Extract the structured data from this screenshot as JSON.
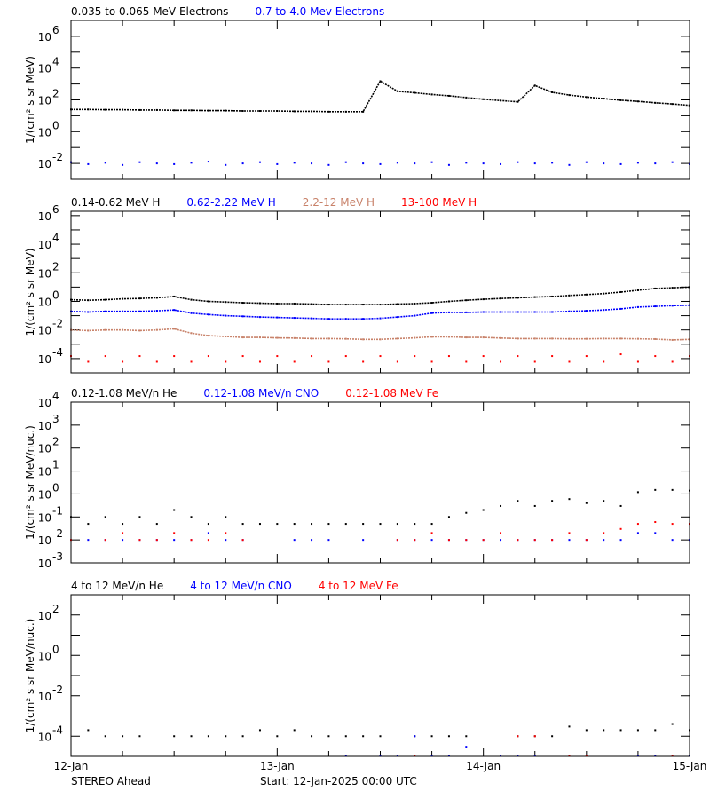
{
  "footer": {
    "spacecraft": "STEREO Ahead",
    "start": "Start: 12-Jan-2025 00:00 UTC"
  },
  "x_tick_labels": [
    "12-Jan",
    "13-Jan",
    "14-Jan",
    "15-Jan"
  ],
  "chart_data": [
    {
      "type": "scatter",
      "ylabel": "1/(cm² s sr MeV)",
      "yscale": "log",
      "ylim": [
        0.001,
        10000000.0
      ],
      "ytick_exponents": [
        -2,
        0,
        2,
        4,
        6
      ],
      "xlim": [
        "2025-01-12 00:00",
        "2025-01-15 00:00"
      ],
      "x": [
        "2025-01-12 00:00",
        "2025-01-12 02:00",
        "2025-01-12 04:00",
        "2025-01-12 06:00",
        "2025-01-12 08:00",
        "2025-01-12 10:00",
        "2025-01-12 12:00",
        "2025-01-12 14:00",
        "2025-01-12 16:00",
        "2025-01-12 18:00",
        "2025-01-12 20:00",
        "2025-01-12 22:00",
        "2025-01-13 00:00",
        "2025-01-13 02:00",
        "2025-01-13 04:00",
        "2025-01-13 06:00",
        "2025-01-13 08:00",
        "2025-01-13 10:00",
        "2025-01-13 12:00",
        "2025-01-13 14:00",
        "2025-01-13 16:00",
        "2025-01-13 18:00",
        "2025-01-13 20:00",
        "2025-01-13 22:00",
        "2025-01-14 00:00",
        "2025-01-14 02:00",
        "2025-01-14 04:00",
        "2025-01-14 06:00",
        "2025-01-14 08:00",
        "2025-01-14 10:00",
        "2025-01-14 12:00",
        "2025-01-14 14:00",
        "2025-01-14 16:00",
        "2025-01-14 18:00",
        "2025-01-14 20:00",
        "2025-01-14 22:00",
        "2025-01-15 00:00"
      ],
      "series": [
        {
          "name": "0.035 to 0.065 MeV Electrons",
          "color": "#000000",
          "connected": true,
          "values": [
            25,
            25,
            24,
            24,
            23,
            23,
            22,
            22,
            21,
            21,
            20,
            20,
            20,
            19,
            19,
            18,
            18,
            18,
            1500,
            350,
            280,
            220,
            180,
            140,
            110,
            90,
            75,
            800,
            300,
            200,
            150,
            120,
            95,
            80,
            65,
            55,
            45
          ]
        },
        {
          "name": "0.7 to 4.0 Mev Electrons",
          "color": "#0000ff",
          "connected": false,
          "values": [
            0.012,
            0.009,
            0.011,
            0.008,
            0.012,
            0.01,
            0.009,
            0.011,
            0.013,
            0.008,
            0.01,
            0.012,
            0.009,
            0.011,
            0.01,
            0.008,
            0.012,
            0.01,
            0.009,
            0.011,
            0.01,
            0.012,
            0.008,
            0.011,
            0.01,
            0.009,
            0.012,
            0.01,
            0.011,
            0.008,
            0.012,
            0.01,
            0.009,
            0.011,
            0.01,
            0.012,
            0.009
          ]
        }
      ]
    },
    {
      "type": "scatter",
      "ylabel": "1/(cm² s sr MeV)",
      "yscale": "log",
      "ylim": [
        1e-05,
        2000000.0
      ],
      "ytick_exponents": [
        -4,
        -2,
        0,
        2,
        4,
        6
      ],
      "xlim": [
        "2025-01-12 00:00",
        "2025-01-15 00:00"
      ],
      "x": [
        "2025-01-12 00:00",
        "2025-01-12 02:00",
        "2025-01-12 04:00",
        "2025-01-12 06:00",
        "2025-01-12 08:00",
        "2025-01-12 10:00",
        "2025-01-12 12:00",
        "2025-01-12 14:00",
        "2025-01-12 16:00",
        "2025-01-12 18:00",
        "2025-01-12 20:00",
        "2025-01-12 22:00",
        "2025-01-13 00:00",
        "2025-01-13 02:00",
        "2025-01-13 04:00",
        "2025-01-13 06:00",
        "2025-01-13 08:00",
        "2025-01-13 10:00",
        "2025-01-13 12:00",
        "2025-01-13 14:00",
        "2025-01-13 16:00",
        "2025-01-13 18:00",
        "2025-01-13 20:00",
        "2025-01-13 22:00",
        "2025-01-14 00:00",
        "2025-01-14 02:00",
        "2025-01-14 04:00",
        "2025-01-14 06:00",
        "2025-01-14 08:00",
        "2025-01-14 10:00",
        "2025-01-14 12:00",
        "2025-01-14 14:00",
        "2025-01-14 16:00",
        "2025-01-14 18:00",
        "2025-01-14 20:00",
        "2025-01-14 22:00",
        "2025-01-15 00:00"
      ],
      "series": [
        {
          "name": "0.14-0.62 MeV H",
          "color": "#000000",
          "connected": true,
          "values": [
            1.3,
            1.2,
            1.3,
            1.5,
            1.6,
            1.8,
            2.2,
            1.3,
            1.0,
            0.9,
            0.8,
            0.75,
            0.7,
            0.7,
            0.65,
            0.6,
            0.6,
            0.6,
            0.6,
            0.65,
            0.7,
            0.8,
            1.0,
            1.2,
            1.4,
            1.6,
            1.8,
            2.0,
            2.2,
            2.6,
            3.0,
            3.5,
            4.5,
            6,
            8,
            9,
            10
          ]
        },
        {
          "name": "0.62-2.22 MeV H",
          "color": "#0000ff",
          "connected": true,
          "values": [
            0.2,
            0.18,
            0.2,
            0.2,
            0.2,
            0.22,
            0.25,
            0.15,
            0.12,
            0.1,
            0.09,
            0.08,
            0.075,
            0.07,
            0.065,
            0.06,
            0.06,
            0.06,
            0.065,
            0.08,
            0.1,
            0.15,
            0.17,
            0.17,
            0.18,
            0.18,
            0.18,
            0.18,
            0.18,
            0.2,
            0.22,
            0.25,
            0.3,
            0.4,
            0.45,
            0.5,
            0.55
          ]
        },
        {
          "name": "2.2-12 MeV H",
          "color": "#c8826a",
          "connected": true,
          "values": [
            0.01,
            0.009,
            0.01,
            0.01,
            0.009,
            0.01,
            0.012,
            0.006,
            0.004,
            0.0035,
            0.003,
            0.003,
            0.0028,
            0.0027,
            0.0025,
            0.0025,
            0.0024,
            0.0022,
            0.0022,
            0.0025,
            0.0028,
            0.0033,
            0.0033,
            0.003,
            0.003,
            0.0027,
            0.0025,
            0.0025,
            0.0025,
            0.0024,
            0.0024,
            0.0025,
            0.0025,
            0.0024,
            0.0023,
            0.002,
            0.0022
          ]
        },
        {
          "name": "13-100 MeV H",
          "color": "#ff0000",
          "connected": false,
          "values": [
            0.00015,
            6e-05,
            0.00015,
            6e-05,
            0.00015,
            6e-05,
            0.00015,
            6e-05,
            0.00015,
            6e-05,
            0.00015,
            6e-05,
            0.00015,
            6e-05,
            0.00015,
            6e-05,
            0.00015,
            6e-05,
            0.00015,
            6e-05,
            0.00015,
            6e-05,
            0.00015,
            6e-05,
            0.00015,
            6e-05,
            0.00015,
            6e-05,
            0.00015,
            6e-05,
            0.00015,
            6e-05,
            0.0002,
            6e-05,
            0.00015,
            6e-05,
            0.00015
          ]
        }
      ]
    },
    {
      "type": "scatter",
      "ylabel": "1/(cm² s sr MeV/nuc.)",
      "yscale": "log",
      "ylim": [
        0.001,
        10000.0
      ],
      "ytick_exponents": [
        -3,
        -2,
        -1,
        0,
        1,
        2,
        3,
        4
      ],
      "xlim": [
        "2025-01-12 00:00",
        "2025-01-15 00:00"
      ],
      "x": [
        "2025-01-12 00:00",
        "2025-01-12 02:00",
        "2025-01-12 04:00",
        "2025-01-12 06:00",
        "2025-01-12 08:00",
        "2025-01-12 10:00",
        "2025-01-12 12:00",
        "2025-01-12 14:00",
        "2025-01-12 16:00",
        "2025-01-12 18:00",
        "2025-01-12 20:00",
        "2025-01-12 22:00",
        "2025-01-13 00:00",
        "2025-01-13 02:00",
        "2025-01-13 04:00",
        "2025-01-13 06:00",
        "2025-01-13 08:00",
        "2025-01-13 10:00",
        "2025-01-13 12:00",
        "2025-01-13 14:00",
        "2025-01-13 16:00",
        "2025-01-13 18:00",
        "2025-01-13 20:00",
        "2025-01-13 22:00",
        "2025-01-14 00:00",
        "2025-01-14 02:00",
        "2025-01-14 04:00",
        "2025-01-14 06:00",
        "2025-01-14 08:00",
        "2025-01-14 10:00",
        "2025-01-14 12:00",
        "2025-01-14 14:00",
        "2025-01-14 16:00",
        "2025-01-14 18:00",
        "2025-01-14 20:00",
        "2025-01-14 22:00",
        "2025-01-15 00:00"
      ],
      "series": [
        {
          "name": "0.12-1.08 MeV/n He",
          "color": "#000000",
          "connected": false,
          "values": [
            0.1,
            0.05,
            0.1,
            0.05,
            0.1,
            0.05,
            0.2,
            0.1,
            0.05,
            0.1,
            0.05,
            0.05,
            0.05,
            0.05,
            0.05,
            0.05,
            0.05,
            0.05,
            0.05,
            0.05,
            0.05,
            0.05,
            0.1,
            0.15,
            0.2,
            0.3,
            0.5,
            0.3,
            0.5,
            0.6,
            0.4,
            0.5,
            0.3,
            1.2,
            1.5,
            1.5,
            1.4
          ]
        },
        {
          "name": "0.12-1.08 MeV/n CNO",
          "color": "#0000ff",
          "connected": false,
          "values": [
            null,
            0.01,
            0.01,
            0.01,
            0.01,
            0.01,
            0.01,
            0.01,
            0.02,
            0.01,
            0.01,
            null,
            null,
            0.01,
            0.01,
            0.01,
            null,
            0.01,
            null,
            0.01,
            0.01,
            0.01,
            0.01,
            0.01,
            0.01,
            0.01,
            0.01,
            0.01,
            0.01,
            0.01,
            0.01,
            0.01,
            0.01,
            0.02,
            0.02,
            0.01,
            0.01
          ]
        },
        {
          "name": "0.12-1.08 MeV Fe",
          "color": "#ff0000",
          "connected": false,
          "values": [
            0.01,
            null,
            0.01,
            0.02,
            0.01,
            0.01,
            0.02,
            0.01,
            0.01,
            0.02,
            0.01,
            null,
            null,
            null,
            null,
            null,
            null,
            null,
            null,
            0.01,
            0.01,
            0.02,
            0.01,
            0.01,
            0.01,
            0.02,
            0.01,
            0.01,
            0.01,
            0.02,
            0.01,
            0.02,
            0.03,
            0.05,
            0.06,
            0.05,
            0.05
          ]
        }
      ]
    },
    {
      "type": "scatter",
      "ylabel": "1/(cm² s sr MeV/nuc.)",
      "yscale": "log",
      "ylim": [
        1e-05,
        1000.0
      ],
      "ytick_exponents": [
        -4,
        -2,
        0,
        2
      ],
      "xlim": [
        "2025-01-12 00:00",
        "2025-01-15 00:00"
      ],
      "x": [
        "2025-01-12 00:00",
        "2025-01-12 02:00",
        "2025-01-12 04:00",
        "2025-01-12 06:00",
        "2025-01-12 08:00",
        "2025-01-12 10:00",
        "2025-01-12 12:00",
        "2025-01-12 14:00",
        "2025-01-12 16:00",
        "2025-01-12 18:00",
        "2025-01-12 20:00",
        "2025-01-12 22:00",
        "2025-01-13 00:00",
        "2025-01-13 02:00",
        "2025-01-13 04:00",
        "2025-01-13 06:00",
        "2025-01-13 08:00",
        "2025-01-13 10:00",
        "2025-01-13 12:00",
        "2025-01-13 14:00",
        "2025-01-13 16:00",
        "2025-01-13 18:00",
        "2025-01-13 20:00",
        "2025-01-13 22:00",
        "2025-01-14 00:00",
        "2025-01-14 02:00",
        "2025-01-14 04:00",
        "2025-01-14 06:00",
        "2025-01-14 08:00",
        "2025-01-14 10:00",
        "2025-01-14 12:00",
        "2025-01-14 14:00",
        "2025-01-14 16:00",
        "2025-01-14 18:00",
        "2025-01-14 20:00",
        "2025-01-14 22:00",
        "2025-01-15 00:00"
      ],
      "series": [
        {
          "name": "4 to 12 MeV/n He",
          "color": "#000000",
          "connected": false,
          "values": [
            null,
            0.0002,
            0.0001,
            0.0001,
            0.0001,
            null,
            0.0001,
            0.0001,
            0.0001,
            0.0001,
            0.0001,
            0.0002,
            0.0001,
            0.0002,
            0.0001,
            0.0001,
            0.0001,
            0.0001,
            0.0001,
            null,
            0.0001,
            0.0001,
            0.0001,
            0.0001,
            null,
            null,
            0.0001,
            0.0001,
            0.0001,
            0.0003,
            0.0002,
            0.0002,
            0.0002,
            0.0002,
            0.0002,
            0.0004,
            0.0002
          ]
        },
        {
          "name": "4 to 12 MeV/n CNO",
          "color": "#0000ff",
          "connected": false,
          "values": [
            null,
            null,
            null,
            null,
            null,
            null,
            null,
            null,
            null,
            null,
            null,
            null,
            null,
            null,
            null,
            null,
            1e-05,
            null,
            1e-05,
            1e-05,
            0.0001,
            1e-05,
            1e-05,
            3e-05,
            null,
            1e-05,
            1e-05,
            1e-05,
            null,
            null,
            null,
            null,
            null,
            1e-05,
            1e-05,
            null,
            1e-05
          ]
        },
        {
          "name": "4 to 12 MeV Fe",
          "color": "#ff0000",
          "connected": false,
          "values": [
            null,
            null,
            null,
            null,
            null,
            null,
            null,
            null,
            null,
            null,
            null,
            null,
            null,
            null,
            null,
            null,
            null,
            null,
            null,
            null,
            1e-05,
            null,
            null,
            null,
            null,
            null,
            0.0001,
            0.0001,
            null,
            1e-05,
            1e-05,
            null,
            null,
            null,
            null,
            1e-05,
            null
          ]
        }
      ]
    }
  ]
}
